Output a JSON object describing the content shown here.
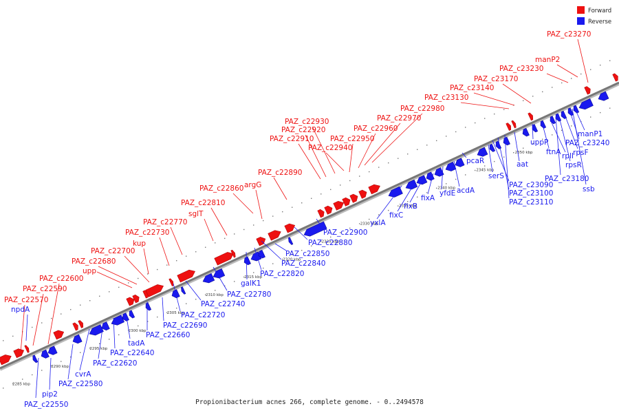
{
  "caption": "Propionibacterium acnes 266, complete genome. - 0..2494578",
  "legend": [
    {
      "label": "Forward",
      "color": "#ee1111"
    },
    {
      "label": "Reverse",
      "color": "#1a1aee"
    }
  ],
  "colors": {
    "forward": "#ee1111",
    "reverse": "#1a1aee",
    "backbone": "#777777"
  },
  "ticks": [
    "2285 kbp",
    "2290 kbp",
    "2295 kbp",
    "2300 kbp",
    "2305 kbp",
    "2310 kbp",
    "2315 kbp",
    "2320 kbp",
    "2325 kbp",
    "2330 kbp",
    "2335 kbp",
    "2340 kbp",
    "2345 kbp",
    "2350 kbp"
  ],
  "forward_labels": [
    "PAZ_c22570",
    "PAZ_c22590",
    "PAZ_c22600",
    "upp",
    "PAZ_c22680",
    "PAZ_c22700",
    "kup",
    "PAZ_c22730",
    "PAZ_c22770",
    "sglT",
    "PAZ_c22810",
    "PAZ_c22860",
    "argG",
    "PAZ_c22890",
    "PAZ_c22910",
    "PAZ_c22920",
    "PAZ_c22930",
    "PAZ_c22940",
    "PAZ_c22950",
    "PAZ_c22960",
    "PAZ_c22970",
    "PAZ_c22980",
    "PAZ_c23130",
    "PAZ_c23140",
    "PAZ_c23170",
    "PAZ_c23230",
    "manP2",
    "PAZ_c23270"
  ],
  "reverse_labels": [
    "npdA",
    "PAZ_c22550",
    "pip2",
    "PAZ_c22580",
    "cvrA",
    "PAZ_c22620",
    "PAZ_c22640",
    "tadA",
    "PAZ_c22660",
    "PAZ_c22690",
    "PAZ_c22720",
    "PAZ_c22740",
    "PAZ_c22780",
    "galK1",
    "PAZ_c22820",
    "PAZ_c22840",
    "PAZ_c22850",
    "PAZ_c22880",
    "PAZ_c22900",
    "yxlA",
    "fixC",
    "fixB",
    "fixA",
    "yfdE",
    "acdA",
    "pcaR",
    "serS",
    "PAZ_c23090",
    "PAZ_c23100",
    "PAZ_c23110",
    "aat",
    "uppP",
    "ftnA",
    "rplI",
    "PAZ_c23180",
    "rpsR",
    "rpsF",
    "PAZ_c23240",
    "manP1",
    "ssb"
  ]
}
